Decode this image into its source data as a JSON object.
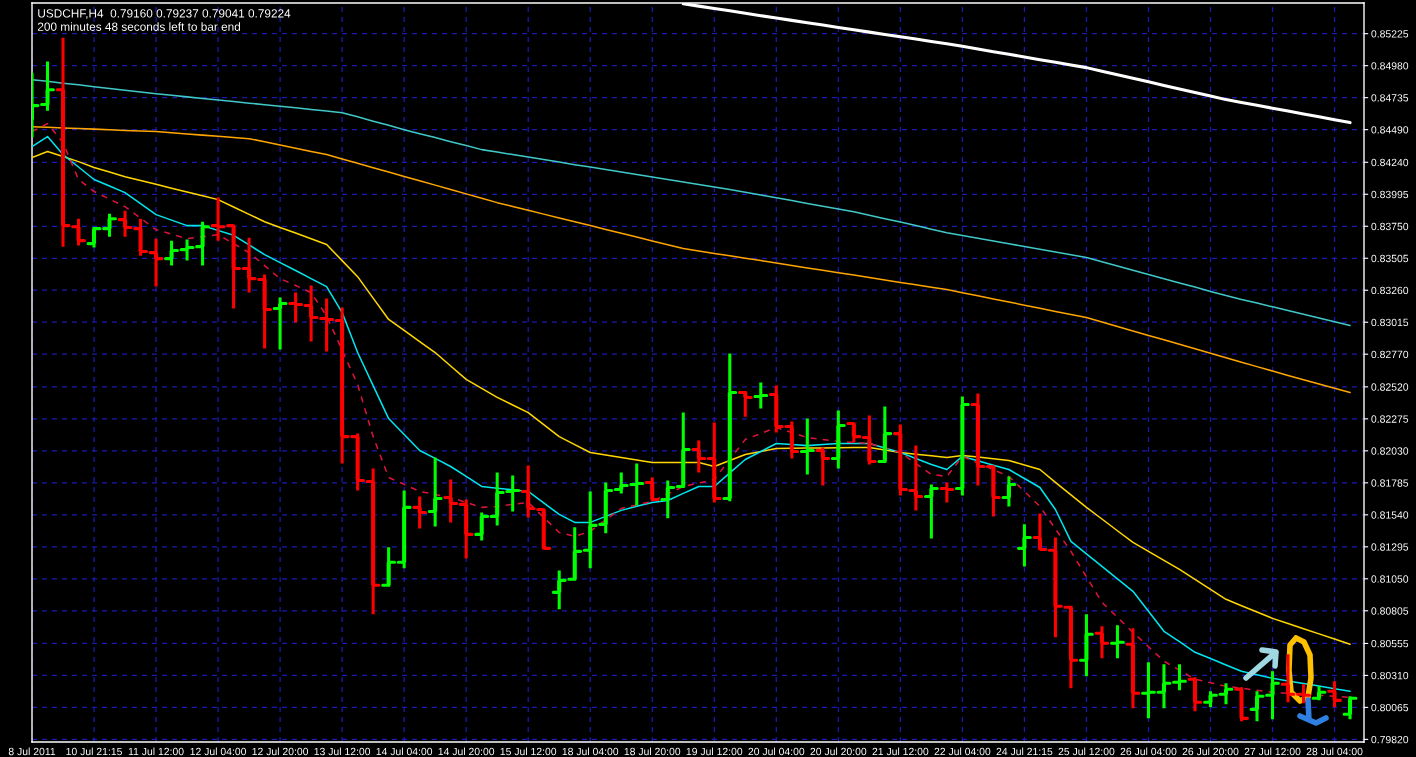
{
  "chart_data": {
    "type": "candlestick",
    "title": "USDCHF,H4  0.79160 0.79237 0.79041 0.79224",
    "subtitle": "200 minutes 48 seconds left to bar end",
    "categories": [
      "8 Jul 2011",
      null,
      null,
      null,
      "10 Jul 21:15",
      null,
      null,
      null,
      "11 Jul 12:00",
      null,
      null,
      null,
      "12 Jul 04:00",
      null,
      null,
      null,
      "12 Jul 20:00",
      null,
      null,
      null,
      "13 Jul 12:00",
      null,
      null,
      null,
      "14 Jul 04:00",
      null,
      null,
      null,
      "14 Jul 20:00",
      null,
      null,
      null,
      "15 Jul 12:00",
      null,
      null,
      null,
      "18 Jul 04:00",
      null,
      null,
      null,
      "18 Jul 20:00",
      null,
      null,
      null,
      "19 Jul 12:00",
      null,
      null,
      null,
      "20 Jul 04:00",
      null,
      null,
      null,
      "20 Jul 20:00",
      null,
      null,
      null,
      "21 Jul 12:00",
      null,
      null,
      null,
      "22 Jul 04:00",
      null,
      null,
      null,
      "24 Jul 21:15",
      null,
      null,
      null,
      "25 Jul 12:00",
      null,
      null,
      null,
      "26 Jul 04:00",
      null,
      null,
      null,
      "26 Jul 20:00",
      null,
      null,
      null,
      "27 Jul 12:00",
      null,
      null,
      null,
      "28 Jul 04:00",
      null
    ],
    "ohlc": [
      [
        0.84567,
        0.84926,
        0.84429,
        0.84674
      ],
      [
        0.84682,
        0.85011,
        0.84635,
        0.84796
      ],
      [
        0.84796,
        0.85194,
        0.83594,
        0.83755
      ],
      [
        0.83747,
        0.83808,
        0.83602,
        0.8364
      ],
      [
        0.83617,
        0.8374,
        0.83587,
        0.83732
      ],
      [
        0.83732,
        0.83846,
        0.8367,
        0.83808
      ],
      [
        0.83801,
        0.83869,
        0.8367,
        0.8374
      ],
      [
        0.83732,
        0.83808,
        0.83525,
        0.83556
      ],
      [
        0.83548,
        0.83655,
        0.83288,
        0.83502
      ],
      [
        0.83502,
        0.8364,
        0.83449,
        0.83564
      ],
      [
        0.83571,
        0.83648,
        0.83487,
        0.83587
      ],
      [
        0.83594,
        0.83785,
        0.83449,
        0.83747
      ],
      [
        0.83755,
        0.8397,
        0.8364,
        0.83747
      ],
      [
        0.83755,
        0.83763,
        0.8312,
        0.83426
      ],
      [
        0.83426,
        0.83663,
        0.83242,
        0.83349
      ],
      [
        0.83342,
        0.8338,
        0.82814,
        0.83112
      ],
      [
        0.8312,
        0.83204,
        0.82806,
        0.83158
      ],
      [
        0.83158,
        0.83242,
        0.83013,
        0.83151
      ],
      [
        0.83143,
        0.83296,
        0.82868,
        0.83051
      ],
      [
        0.83043,
        0.83197,
        0.82791,
        0.83036
      ],
      [
        0.83028,
        0.83128,
        0.81933,
        0.82139
      ],
      [
        0.82139,
        0.82162,
        0.81726,
        0.81803
      ],
      [
        0.81795,
        0.81895,
        0.80778,
        0.81
      ],
      [
        0.81,
        0.81291,
        0.81,
        0.81176
      ],
      [
        0.81176,
        0.81726,
        0.8113,
        0.81597
      ],
      [
        0.81597,
        0.8168,
        0.81436,
        0.81558
      ],
      [
        0.81566,
        0.81979,
        0.81451,
        0.81665
      ],
      [
        0.81673,
        0.8181,
        0.81482,
        0.81627
      ],
      [
        0.8162,
        0.81658,
        0.81206,
        0.8139
      ],
      [
        0.8139,
        0.81558,
        0.81344,
        0.81528
      ],
      [
        0.81528,
        0.81864,
        0.81459,
        0.81711
      ],
      [
        0.81719,
        0.81841,
        0.81566,
        0.81726
      ],
      [
        0.81719,
        0.81918,
        0.8152,
        0.81589
      ],
      [
        0.81581,
        0.81589,
        0.81275,
        0.81283
      ],
      [
        0.80946,
        0.81114,
        0.80816,
        0.81038
      ],
      [
        0.81046,
        0.81444,
        0.81046,
        0.8126
      ],
      [
        0.81268,
        0.81719,
        0.8113,
        0.81459
      ],
      [
        0.81467,
        0.81788,
        0.81398,
        0.81726
      ],
      [
        0.81734,
        0.81864,
        0.81703,
        0.81765
      ],
      [
        0.81772,
        0.81933,
        0.81612,
        0.8178
      ],
      [
        0.81788,
        0.81826,
        0.81643,
        0.81658
      ],
      [
        0.81658,
        0.81803,
        0.81513,
        0.81749
      ],
      [
        0.81757,
        0.82323,
        0.81749,
        0.8204
      ],
      [
        0.8204,
        0.82109,
        0.81864,
        0.81972
      ],
      [
        0.81972,
        0.82247,
        0.81635,
        0.81665
      ],
      [
        0.81665,
        0.82775,
        0.81643,
        0.82477
      ],
      [
        0.82477,
        0.82477,
        0.82292,
        0.82439
      ],
      [
        0.82446,
        0.82554,
        0.82354,
        0.82454
      ],
      [
        0.82462,
        0.82531,
        0.8217,
        0.82216
      ],
      [
        0.82216,
        0.82255,
        0.81972,
        0.82025
      ],
      [
        0.82025,
        0.82278,
        0.81849,
        0.82033
      ],
      [
        0.82033,
        0.82056,
        0.81765,
        0.81972
      ],
      [
        0.81972,
        0.82339,
        0.81895,
        0.82224
      ],
      [
        0.82239,
        0.82247,
        0.82093,
        0.82139
      ],
      [
        0.82132,
        0.823,
        0.81926,
        0.81949
      ],
      [
        0.81949,
        0.82369,
        0.81941,
        0.82162
      ],
      [
        0.82162,
        0.82232,
        0.81688,
        0.81734
      ],
      [
        0.81726,
        0.8207,
        0.81574,
        0.8168
      ],
      [
        0.8168,
        0.81772,
        0.81359,
        0.81742
      ],
      [
        0.81742,
        0.81788,
        0.81635,
        0.81734
      ],
      [
        0.81742,
        0.82446,
        0.81688,
        0.82385
      ],
      [
        0.82385,
        0.82469,
        0.81765,
        0.8191
      ],
      [
        0.8191,
        0.81918,
        0.81528,
        0.81673
      ],
      [
        0.81673,
        0.81834,
        0.81604,
        0.81772
      ],
      [
        0.81283,
        0.81467,
        0.81145,
        0.81367
      ],
      [
        0.81367,
        0.81551,
        0.81268,
        0.81275
      ],
      [
        0.81268,
        0.81367,
        0.80602,
        0.80839
      ],
      [
        0.80832,
        0.80832,
        0.80212,
        0.80426
      ],
      [
        0.80426,
        0.80778,
        0.80303,
        0.80625
      ],
      [
        0.80633,
        0.80686,
        0.80441,
        0.80556
      ],
      [
        0.80556,
        0.80694,
        0.80441,
        0.80564
      ],
      [
        0.80549,
        0.80671,
        0.80058,
        0.80173
      ],
      [
        0.80173,
        0.80411,
        0.79981,
        0.80181
      ],
      [
        0.80181,
        0.80395,
        0.80058,
        0.8025
      ],
      [
        0.80257,
        0.80395,
        0.80196,
        0.80265
      ],
      [
        0.80281,
        0.80296,
        0.80035,
        0.80104
      ],
      [
        0.80104,
        0.80188,
        0.80066,
        0.80158
      ],
      [
        0.80165,
        0.8025,
        0.80089,
        0.80204
      ],
      [
        0.80204,
        0.80219,
        0.79959,
        0.79981
      ],
      [
        0.8005,
        0.80188,
        0.79959,
        0.8015
      ],
      [
        0.80158,
        0.80342,
        0.79974,
        0.8025
      ],
      [
        0.80242,
        0.80472,
        0.80104,
        0.80165
      ],
      [
        0.80165,
        0.80242,
        0.80096,
        0.80158
      ],
      [
        0.80135,
        0.80227,
        0.80119,
        0.80181
      ],
      [
        0.80188,
        0.80265,
        0.80066,
        0.80119
      ],
      [
        0.80012,
        0.8015,
        0.79974,
        0.80135
      ]
    ],
    "colors": [
      "#00ff00",
      "#00ff00",
      "#ff0000",
      "#ff0000",
      "#00ff00",
      "#00ff00",
      "#ff0000",
      "#ff0000",
      "#ff0000",
      "#00ff00",
      "#00ff00",
      "#00ff00",
      "#ff0000",
      "#ff0000",
      "#ff0000",
      "#ff0000",
      "#00ff00",
      "#ff0000",
      "#ff0000",
      "#ff0000",
      "#ff0000",
      "#ff0000",
      "#ff0000",
      "#00ff00",
      "#00ff00",
      "#ff0000",
      "#00ff00",
      "#ff0000",
      "#ff0000",
      "#00ff00",
      "#00ff00",
      "#00ff00",
      "#ff0000",
      "#ff0000",
      "#00ff00",
      "#00ff00",
      "#00ff00",
      "#00ff00",
      "#00ff00",
      "#00ff00",
      "#ff0000",
      "#00ff00",
      "#00ff00",
      "#ff0000",
      "#ff0000",
      "#00ff00",
      "#ff0000",
      "#00ff00",
      "#ff0000",
      "#ff0000",
      "#00ff00",
      "#ff0000",
      "#00ff00",
      "#ff0000",
      "#ff0000",
      "#00ff00",
      "#ff0000",
      "#ff0000",
      "#00ff00",
      "#ff0000",
      "#00ff00",
      "#ff0000",
      "#ff0000",
      "#00ff00",
      "#00ff00",
      "#ff0000",
      "#ff0000",
      "#ff0000",
      "#00ff00",
      "#ff0000",
      "#00ff00",
      "#ff0000",
      "#00ff00",
      "#00ff00",
      "#00ff00",
      "#ff0000",
      "#00ff00",
      "#00ff00",
      "#ff0000",
      "#00ff00",
      "#00ff00",
      "#ff0000",
      "#ff0000",
      "#00ff00",
      "#ff0000",
      "#00ff00"
    ],
    "series": [
      {
        "type": "line",
        "color": "#ffffff",
        "line_style": "solid",
        "values": [
          null,
          null,
          null,
          null,
          null,
          null,
          null,
          null,
          null,
          null,
          null,
          null,
          null,
          null,
          null,
          null,
          null,
          null,
          null,
          null,
          null,
          null,
          null,
          null,
          null,
          null,
          null,
          null,
          null,
          null,
          null,
          null,
          null,
          null,
          null,
          null,
          null,
          null,
          null,
          null,
          null,
          null,
          0.85454,
          0.85436,
          0.85418,
          0.854,
          0.85382,
          0.85363,
          0.85345,
          0.85327,
          0.85309,
          0.85291,
          0.85273,
          0.85255,
          0.85237,
          0.85219,
          0.85202,
          0.85184,
          0.85166,
          0.85148,
          0.85128,
          0.85107,
          0.85087,
          0.85067,
          0.85047,
          0.85026,
          0.85006,
          0.84985,
          0.84965,
          0.84938,
          0.84911,
          0.84883,
          0.84856,
          0.84829,
          0.84802,
          0.84774,
          0.84747,
          0.8472,
          0.84698,
          0.84676,
          0.84654,
          0.84632,
          0.8461,
          0.84588,
          0.84566,
          0.84544
        ]
      },
      {
        "type": "line",
        "color": "#40c8c8",
        "line_style": "solid",
        "values": [
          0.84873,
          0.8486,
          0.84846,
          0.84833,
          0.84819,
          0.84806,
          0.84792,
          0.84779,
          0.84765,
          0.84753,
          0.84741,
          0.84729,
          0.84717,
          0.84705,
          0.84693,
          0.84681,
          0.84669,
          0.84657,
          0.84644,
          0.84632,
          0.8462,
          0.84588,
          0.84555,
          0.84523,
          0.8449,
          0.84459,
          0.84429,
          0.84398,
          0.84368,
          0.84337,
          0.84318,
          0.84299,
          0.8428,
          0.84261,
          0.84242,
          0.84222,
          0.84203,
          0.84184,
          0.84165,
          0.84146,
          0.84127,
          0.84108,
          0.84089,
          0.84069,
          0.8405,
          0.84031,
          0.8401,
          0.83989,
          0.83968,
          0.83947,
          0.83925,
          0.83904,
          0.83883,
          0.83862,
          0.83835,
          0.83808,
          0.83782,
          0.83755,
          0.83728,
          0.83701,
          0.8368,
          0.83659,
          0.83637,
          0.83616,
          0.83595,
          0.83574,
          0.83553,
          0.83531,
          0.8351,
          0.83478,
          0.83445,
          0.83413,
          0.83381,
          0.83348,
          0.83316,
          0.83284,
          0.83251,
          0.83219,
          0.8319,
          0.83162,
          0.83133,
          0.83105,
          0.83076,
          0.83047,
          0.83019,
          0.8299
        ]
      },
      {
        "type": "line",
        "color": "#ffa500",
        "line_style": "solid",
        "values": [
          0.84513,
          0.84508,
          0.84503,
          0.84499,
          0.84494,
          0.84489,
          0.84484,
          0.8448,
          0.84475,
          0.84466,
          0.84457,
          0.84448,
          0.84439,
          0.8443,
          0.84421,
          0.84397,
          0.84372,
          0.84348,
          0.84323,
          0.84299,
          0.84266,
          0.84232,
          0.84199,
          0.84165,
          0.84132,
          0.84098,
          0.84065,
          0.84031,
          0.83998,
          0.83964,
          0.83931,
          0.83902,
          0.83872,
          0.83843,
          0.83814,
          0.83784,
          0.83755,
          0.83726,
          0.83696,
          0.83667,
          0.83638,
          0.83608,
          0.83579,
          0.83561,
          0.83542,
          0.83524,
          0.83505,
          0.83487,
          0.83468,
          0.8345,
          0.83431,
          0.83413,
          0.83394,
          0.83376,
          0.83357,
          0.83339,
          0.8332,
          0.83302,
          0.83283,
          0.83265,
          0.83241,
          0.83217,
          0.83193,
          0.8317,
          0.83146,
          0.83122,
          0.83098,
          0.83075,
          0.83051,
          0.83017,
          0.82983,
          0.82948,
          0.82914,
          0.8288,
          0.82846,
          0.82812,
          0.82777,
          0.82743,
          0.82709,
          0.82675,
          0.82641,
          0.82607,
          0.82575,
          0.82542,
          0.8251,
          0.82477
        ]
      },
      {
        "type": "line",
        "color": "#ffd700",
        "line_style": "solid",
        "values": [
          0.84276,
          0.84322,
          0.84284,
          0.84245,
          0.842,
          0.84165,
          0.8413,
          0.84101,
          0.84071,
          0.84042,
          0.84013,
          0.83983,
          0.83954,
          0.83898,
          0.83841,
          0.83785,
          0.83741,
          0.83698,
          0.83654,
          0.8361,
          0.83487,
          0.83364,
          0.832,
          0.83036,
          0.82952,
          0.82867,
          0.82783,
          0.8268,
          0.82577,
          0.82508,
          0.82439,
          0.82381,
          0.82323,
          0.82231,
          0.82139,
          0.82078,
          0.82017,
          0.81998,
          0.81979,
          0.8196,
          0.81941,
          0.81941,
          0.81941,
          0.81941,
          0.8191,
          0.81956,
          0.82002,
          0.82025,
          0.82048,
          0.82049,
          0.82051,
          0.82052,
          0.82053,
          0.82055,
          0.82056,
          0.82037,
          0.82017,
          0.82004,
          0.81992,
          0.81979,
          0.81995,
          0.81982,
          0.81969,
          0.81956,
          0.81922,
          0.81887,
          0.81788,
          0.81693,
          0.81597,
          0.81508,
          0.81418,
          0.81329,
          0.8126,
          0.81191,
          0.81122,
          0.81046,
          0.80969,
          0.80893,
          0.80844,
          0.80796,
          0.80747,
          0.80707,
          0.80668,
          0.80628,
          0.80589,
          0.80549
        ]
      },
      {
        "type": "line",
        "color": "#00e5ee",
        "line_style": "solid",
        "values": [
          0.8436,
          0.84437,
          0.84299,
          0.84204,
          0.84108,
          0.84058,
          0.84008,
          0.83924,
          0.83839,
          0.83797,
          0.83755,
          0.83755,
          null,
          0.83681,
          0.83607,
          0.83533,
          0.83472,
          0.83411,
          0.83349,
          0.83288,
          0.83089,
          0.82783,
          0.8253,
          0.82277,
          0.82155,
          0.82033,
          0.81972,
          0.8191,
          0.81834,
          0.81757,
          0.81744,
          0.81732,
          0.81719,
          0.81631,
          0.81543,
          0.81482,
          0.81482,
          0.81528,
          0.81574,
          0.81605,
          0.81635,
          0.8165,
          0.81704,
          0.81757,
          0.81757,
          0.81861,
          0.81964,
          0.82025,
          0.82086,
          0.82078,
          0.8207,
          0.82078,
          0.82086,
          0.82086,
          0.82086,
          0.82052,
          0.82017,
          0.81972,
          0.81926,
          0.81887,
          0.81987,
          0.81954,
          0.8192,
          0.81887,
          0.81818,
          0.81749,
          0.81581,
          0.81336,
          0.81241,
          0.81145,
          0.8105,
          0.80954,
          0.80801,
          0.80648,
          0.80568,
          0.80487,
          0.80439,
          0.8039,
          0.80342,
          0.80315,
          0.80288,
          0.80268,
          0.80248,
          0.80228,
          0.80208,
          0.80188
        ]
      },
      {
        "type": "line",
        "color": "#dc143c",
        "line_style": "dashed",
        "values": [
          0.84475,
          0.84536,
          0.84391,
          0.84108,
          0.84016,
          0.83958,
          0.839,
          0.83812,
          0.83724,
          0.8369,
          0.83655,
          0.8367,
          0.83686,
          0.83617,
          0.83548,
          0.83449,
          0.83349,
          0.83296,
          0.83242,
          0.83063,
          null,
          0.82538,
          0.82139,
          0.81826,
          0.81773,
          0.81719,
          0.81696,
          0.81673,
          0.81635,
          0.81597,
          0.81604,
          0.8162,
          0.81635,
          0.8152,
          0.81405,
          0.81375,
          0.81413,
          0.81501,
          0.81589,
          0.81616,
          0.81643,
          0.817,
          0.81757,
          0.81784,
          0.8181,
          null,
          0.82117,
          0.82163,
          0.82208,
          0.8217,
          0.82132,
          0.82117,
          0.82101,
          0.82094,
          0.82086,
          0.82052,
          0.82017,
          0.81933,
          0.81849,
          0.81834,
          0.81987,
          0.81936,
          0.81885,
          0.81834,
          0.81719,
          0.81604,
          0.81432,
          0.8126,
          0.81065,
          0.8087,
          0.80755,
          0.8064,
          0.8053,
          0.80419,
          0.8035,
          0.80281,
          0.80254,
          0.80227,
          0.80212,
          0.80196,
          0.80181,
          0.80173,
          0.80165,
          0.80158,
          0.8015,
          0.80142
        ]
      }
    ],
    "ylim": [
      0.798,
      0.8546
    ],
    "yticks": [
      {
        "value": 0.85225,
        "label": "0.85225"
      },
      {
        "value": 0.8498,
        "label": "0.84980"
      },
      {
        "value": 0.84735,
        "label": "0.84735"
      },
      {
        "value": 0.8449,
        "label": "0.84490"
      },
      {
        "value": 0.8424,
        "label": "0.84240"
      },
      {
        "value": 0.83995,
        "label": "0.83995"
      },
      {
        "value": 0.8375,
        "label": "0.83750"
      },
      {
        "value": 0.83505,
        "label": "0.83505"
      },
      {
        "value": 0.8326,
        "label": "0.83260"
      },
      {
        "value": 0.83015,
        "label": "0.83015"
      },
      {
        "value": 0.8277,
        "label": "0.82770"
      },
      {
        "value": 0.8252,
        "label": "0.82520"
      },
      {
        "value": 0.82275,
        "label": "0.82275"
      },
      {
        "value": 0.8203,
        "label": "0.82030"
      },
      {
        "value": 0.81785,
        "label": "0.81785"
      },
      {
        "value": 0.8154,
        "label": "0.81540"
      },
      {
        "value": 0.81295,
        "label": "0.81295"
      },
      {
        "value": 0.8105,
        "label": "0.81050"
      },
      {
        "value": 0.80805,
        "label": "0.80805"
      },
      {
        "value": 0.80555,
        "label": "0.80555"
      },
      {
        "value": 0.8031,
        "label": "0.80310"
      },
      {
        "value": 0.80065,
        "label": "0.80065"
      },
      {
        "value": 0.7982,
        "label": "0.79820"
      }
    ],
    "grid": true,
    "marker": "none"
  }
}
